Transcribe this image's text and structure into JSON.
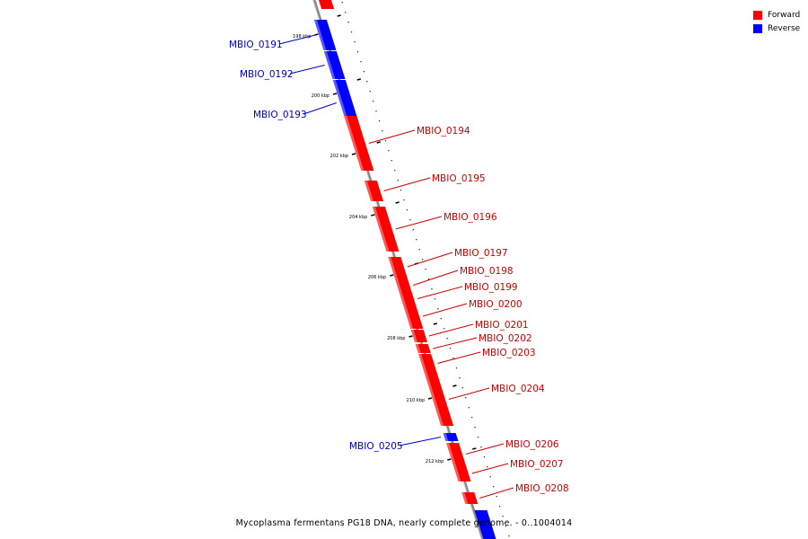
{
  "colors": {
    "forward": "#ff0000",
    "reverse": "#0000ff",
    "forward_label": "#cc0000",
    "reverse_label": "#0000cc",
    "backbone": "#888888"
  },
  "legend": {
    "forward": "Forward",
    "reverse": "Reverse"
  },
  "caption": "Mycoplasma fermentans PG18 DNA, nearly complete genome. - 0..1004014",
  "ticks": [
    "198 kbp",
    "200 kbp",
    "202 kbp",
    "204 kbp",
    "206 kbp",
    "208 kbp",
    "210 kbp",
    "212 kbp"
  ],
  "genes": [
    {
      "name": "MBIO_0191",
      "strand": "reverse"
    },
    {
      "name": "MBIO_0192",
      "strand": "reverse"
    },
    {
      "name": "MBIO_0193",
      "strand": "reverse"
    },
    {
      "name": "MBIO_0194",
      "strand": "forward"
    },
    {
      "name": "MBIO_0195",
      "strand": "forward"
    },
    {
      "name": "MBIO_0196",
      "strand": "forward"
    },
    {
      "name": "MBIO_0197",
      "strand": "forward"
    },
    {
      "name": "MBIO_0198",
      "strand": "forward"
    },
    {
      "name": "MBIO_0199",
      "strand": "forward"
    },
    {
      "name": "MBIO_0200",
      "strand": "forward"
    },
    {
      "name": "MBIO_0201",
      "strand": "forward"
    },
    {
      "name": "MBIO_0202",
      "strand": "forward"
    },
    {
      "name": "MBIO_0203",
      "strand": "forward"
    },
    {
      "name": "MBIO_0204",
      "strand": "forward"
    },
    {
      "name": "MBIO_0205",
      "strand": "reverse"
    },
    {
      "name": "MBIO_0206",
      "strand": "forward"
    },
    {
      "name": "MBIO_0207",
      "strand": "forward"
    },
    {
      "name": "MBIO_0208",
      "strand": "forward"
    }
  ]
}
